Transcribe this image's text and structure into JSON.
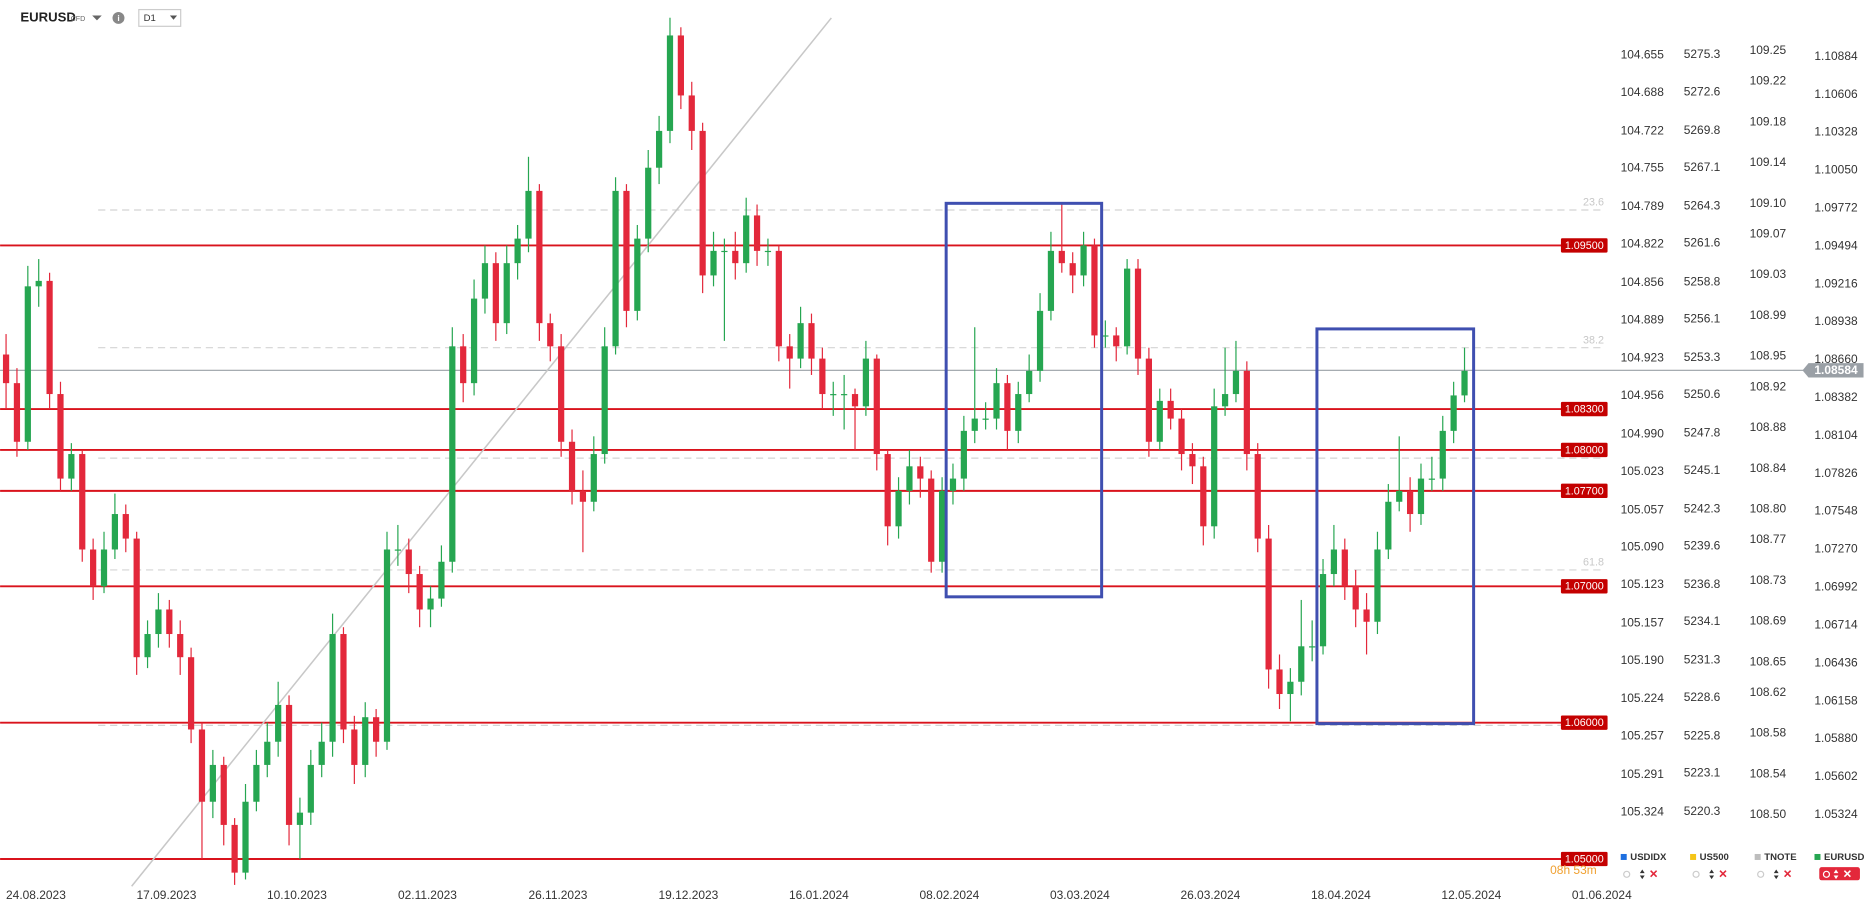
{
  "chart_data": {
    "type": "candlestick",
    "symbol": "EURUSD",
    "instrument_type": "CFD",
    "timeframe": "D1",
    "up_color": "#26a651",
    "down_color": "#e3283b",
    "candles": [
      [
        1.087,
        1.0885,
        1.083,
        1.0849
      ],
      [
        1.0849,
        1.086,
        1.0795,
        1.0806
      ],
      [
        1.0806,
        1.0935,
        1.08,
        1.092
      ],
      [
        1.092,
        1.094,
        1.0905,
        1.0924
      ],
      [
        1.0924,
        1.093,
        1.083,
        1.0841
      ],
      [
        1.0841,
        1.085,
        1.077,
        1.0779
      ],
      [
        1.0779,
        1.0805,
        1.077,
        1.0797
      ],
      [
        1.0797,
        1.08,
        1.0718,
        1.0727
      ],
      [
        1.0727,
        1.0735,
        1.069,
        1.07
      ],
      [
        1.07,
        1.074,
        1.0695,
        1.0727
      ],
      [
        1.0727,
        1.0768,
        1.072,
        1.0753
      ],
      [
        1.0753,
        1.076,
        1.0725,
        1.0735
      ],
      [
        1.0735,
        1.074,
        1.0635,
        1.0648
      ],
      [
        1.0648,
        1.0675,
        1.064,
        1.0665
      ],
      [
        1.0665,
        1.0695,
        1.0655,
        1.0683
      ],
      [
        1.0683,
        1.069,
        1.0655,
        1.0665
      ],
      [
        1.0665,
        1.0675,
        1.0635,
        1.0648
      ],
      [
        1.0648,
        1.0655,
        1.0585,
        1.0595
      ],
      [
        1.0595,
        1.06,
        1.05,
        1.0542
      ],
      [
        1.0542,
        1.058,
        1.053,
        1.0569
      ],
      [
        1.0569,
        1.0575,
        1.051,
        1.0525
      ],
      [
        1.0525,
        1.053,
        1.0481,
        1.049
      ],
      [
        1.049,
        1.0555,
        1.0485,
        1.0542
      ],
      [
        1.0542,
        1.058,
        1.0535,
        1.0569
      ],
      [
        1.0569,
        1.06,
        1.056,
        1.0586
      ],
      [
        1.0586,
        1.063,
        1.0575,
        1.0613
      ],
      [
        1.0613,
        1.062,
        1.051,
        1.0525
      ],
      [
        1.0525,
        1.0545,
        1.05,
        1.0534
      ],
      [
        1.0534,
        1.058,
        1.0525,
        1.0569
      ],
      [
        1.0569,
        1.06,
        1.056,
        1.0586
      ],
      [
        1.0586,
        1.068,
        1.0575,
        1.0665
      ],
      [
        1.0665,
        1.067,
        1.0585,
        1.0595
      ],
      [
        1.0595,
        1.0605,
        1.0555,
        1.0569
      ],
      [
        1.0569,
        1.0615,
        1.056,
        1.0604
      ],
      [
        1.0604,
        1.061,
        1.0575,
        1.0586
      ],
      [
        1.0586,
        1.074,
        1.058,
        1.0727
      ],
      [
        1.0727,
        1.0745,
        1.0715,
        1.0727
      ],
      [
        1.0727,
        1.0735,
        1.0695,
        1.0709
      ],
      [
        1.0709,
        1.0715,
        1.067,
        1.0683
      ],
      [
        1.0683,
        1.07,
        1.067,
        1.0691
      ],
      [
        1.0691,
        1.073,
        1.0685,
        1.0718
      ],
      [
        1.0718,
        1.089,
        1.071,
        1.0876
      ],
      [
        1.0876,
        1.0885,
        1.0835,
        1.0849
      ],
      [
        1.0849,
        1.0925,
        1.084,
        1.0911
      ],
      [
        1.0911,
        1.095,
        1.09,
        1.0937
      ],
      [
        1.0937,
        1.0945,
        1.088,
        1.0893
      ],
      [
        1.0893,
        1.095,
        1.0885,
        1.0937
      ],
      [
        1.0937,
        1.0965,
        1.0925,
        1.0955
      ],
      [
        1.0955,
        1.1015,
        1.0945,
        1.099
      ],
      [
        1.099,
        1.0995,
        1.088,
        1.0893
      ],
      [
        1.0893,
        1.09,
        1.0865,
        1.0876
      ],
      [
        1.0876,
        1.0885,
        1.0795,
        1.0806
      ],
      [
        1.0806,
        1.0815,
        1.076,
        1.077
      ],
      [
        1.077,
        1.0785,
        1.0725,
        1.0762
      ],
      [
        1.0762,
        1.081,
        1.0755,
        1.0797
      ],
      [
        1.0797,
        1.089,
        1.079,
        1.0876
      ],
      [
        1.0876,
        1.1,
        1.087,
        1.099
      ],
      [
        1.099,
        1.0995,
        1.089,
        1.0902
      ],
      [
        1.0902,
        1.0965,
        1.0895,
        1.0955
      ],
      [
        1.0955,
        1.102,
        1.0945,
        1.1007
      ],
      [
        1.1007,
        1.1045,
        1.0995,
        1.1034
      ],
      [
        1.1034,
        1.1117,
        1.1025,
        1.1104
      ],
      [
        1.1104,
        1.111,
        1.105,
        1.106
      ],
      [
        1.106,
        1.107,
        1.102,
        1.1034
      ],
      [
        1.1034,
        1.104,
        1.0915,
        1.0928
      ],
      [
        1.0928,
        1.096,
        1.092,
        1.0946
      ],
      [
        1.0946,
        1.0955,
        1.088,
        1.0946
      ],
      [
        1.0946,
        1.096,
        1.0925,
        1.0937
      ],
      [
        1.0937,
        1.0985,
        1.093,
        1.0972
      ],
      [
        1.0972,
        1.098,
        1.0935,
        1.0946
      ],
      [
        1.0946,
        1.0955,
        1.0935,
        1.0946
      ],
      [
        1.0946,
        1.095,
        1.0865,
        1.0876
      ],
      [
        1.0876,
        1.0885,
        1.0845,
        1.0867
      ],
      [
        1.0867,
        1.0905,
        1.086,
        1.0893
      ],
      [
        1.0893,
        1.09,
        1.0855,
        1.0867
      ],
      [
        1.0867,
        1.0875,
        1.083,
        1.0841
      ],
      [
        1.0841,
        1.085,
        1.0825,
        1.0841
      ],
      [
        1.0841,
        1.0855,
        1.0815,
        1.0841
      ],
      [
        1.0841,
        1.0845,
        1.08,
        1.0832
      ],
      [
        1.0832,
        1.088,
        1.0825,
        1.0867
      ],
      [
        1.0867,
        1.087,
        1.0785,
        1.0797
      ],
      [
        1.0797,
        1.08,
        1.073,
        1.0744
      ],
      [
        1.0744,
        1.078,
        1.0735,
        1.077
      ],
      [
        1.077,
        1.08,
        1.076,
        1.0788
      ],
      [
        1.0788,
        1.0795,
        1.0765,
        1.0779
      ],
      [
        1.0779,
        1.0785,
        1.071,
        1.0718
      ],
      [
        1.0718,
        1.078,
        1.071,
        1.077
      ],
      [
        1.077,
        1.079,
        1.076,
        1.0779
      ],
      [
        1.0779,
        1.0825,
        1.077,
        1.0814
      ],
      [
        1.0814,
        1.089,
        1.0805,
        1.0823
      ],
      [
        1.0823,
        1.0835,
        1.0815,
        1.0823
      ],
      [
        1.0823,
        1.086,
        1.0815,
        1.0849
      ],
      [
        1.0849,
        1.0855,
        1.08,
        1.0814
      ],
      [
        1.0814,
        1.085,
        1.0805,
        1.0841
      ],
      [
        1.0841,
        1.087,
        1.0835,
        1.0858
      ],
      [
        1.0858,
        1.0915,
        1.085,
        1.0902
      ],
      [
        1.0902,
        1.096,
        1.0895,
        1.0946
      ],
      [
        1.0946,
        1.098,
        1.093,
        1.0937
      ],
      [
        1.0937,
        1.0945,
        1.0915,
        1.0928
      ],
      [
        1.0928,
        1.096,
        1.092,
        1.095
      ],
      [
        1.095,
        1.0955,
        1.0875,
        1.0884
      ],
      [
        1.0884,
        1.0895,
        1.0875,
        1.0884
      ],
      [
        1.0884,
        1.089,
        1.0865,
        1.0876
      ],
      [
        1.0876,
        1.094,
        1.087,
        1.0933
      ],
      [
        1.0933,
        1.094,
        1.0855,
        1.0867
      ],
      [
        1.0867,
        1.0875,
        1.0795,
        1.0806
      ],
      [
        1.0806,
        1.0845,
        1.08,
        1.0836
      ],
      [
        1.0836,
        1.0845,
        1.0815,
        1.0823
      ],
      [
        1.0823,
        1.083,
        1.0785,
        1.0797
      ],
      [
        1.0797,
        1.0805,
        1.0775,
        1.0788
      ],
      [
        1.0788,
        1.0795,
        1.073,
        1.0744
      ],
      [
        1.0744,
        1.0845,
        1.0735,
        1.0832
      ],
      [
        1.0832,
        1.0875,
        1.0825,
        1.0841
      ],
      [
        1.0841,
        1.088,
        1.0835,
        1.0858
      ],
      [
        1.0858,
        1.0865,
        1.0785,
        1.0797
      ],
      [
        1.0797,
        1.0805,
        1.0725,
        1.0735
      ],
      [
        1.0735,
        1.0745,
        1.0625,
        1.0639
      ],
      [
        1.0639,
        1.065,
        1.061,
        1.0621
      ],
      [
        1.0621,
        1.064,
        1.0601,
        1.063
      ],
      [
        1.063,
        1.069,
        1.062,
        1.0656
      ],
      [
        1.0656,
        1.0675,
        1.0645,
        1.0656
      ],
      [
        1.0656,
        1.072,
        1.065,
        1.0709
      ],
      [
        1.0709,
        1.0745,
        1.07,
        1.0727
      ],
      [
        1.0727,
        1.0735,
        1.069,
        1.07
      ],
      [
        1.07,
        1.0712,
        1.067,
        1.0683
      ],
      [
        1.0683,
        1.0695,
        1.065,
        1.0674
      ],
      [
        1.0674,
        1.074,
        1.0665,
        1.0727
      ],
      [
        1.0727,
        1.0775,
        1.072,
        1.0762
      ],
      [
        1.0762,
        1.081,
        1.0755,
        1.077
      ],
      [
        1.077,
        1.078,
        1.074,
        1.0753
      ],
      [
        1.0753,
        1.079,
        1.0745,
        1.0779
      ],
      [
        1.0779,
        1.0795,
        1.077,
        1.0779
      ],
      [
        1.0779,
        1.0825,
        1.077,
        1.0814
      ],
      [
        1.0814,
        1.085,
        1.0805,
        1.084
      ],
      [
        1.084,
        1.0875,
        1.0835,
        1.0858
      ]
    ],
    "x_labels": [
      "24.08.2023",
      "17.09.2023",
      "10.10.2023",
      "02.11.2023",
      "26.11.2023",
      "19.12.2023",
      "16.01.2024",
      "08.02.2024",
      "03.03.2024",
      "26.03.2024",
      "18.04.2024",
      "12.05.2024",
      "01.06.2024"
    ],
    "ylim": [
      1.048,
      1.113
    ],
    "yticks": [
      1.10884,
      1.10606,
      1.10328,
      {
        "value": 1.1005,
        "label": "1.10050"
      },
      1.09772,
      1.09494,
      1.09216,
      1.08938,
      {
        "value": 1.0866,
        "label": "1.08660"
      },
      1.08382,
      1.08104,
      1.07826,
      1.07548,
      {
        "value": 1.0727,
        "label": "1.07270"
      },
      1.06992,
      1.06714,
      1.06436,
      1.06158,
      {
        "value": 1.0588,
        "label": "1.05880"
      },
      1.05602,
      1.05324
    ],
    "last_price": 1.08584,
    "last_price_color": "#9aa0a6",
    "level_color": "#d9131c",
    "levels": [
      {
        "value": 1.095,
        "label": "1.09500"
      },
      {
        "value": 1.083,
        "label": "1.08300"
      },
      {
        "value": 1.08,
        "label": "1.08000"
      },
      {
        "value": 1.077,
        "label": "1.07700"
      },
      {
        "value": 1.07,
        "label": "1.07000"
      },
      {
        "value": 1.06,
        "label": "1.06000"
      },
      {
        "value": 1.05,
        "label": "1.05000"
      }
    ],
    "fib_levels": [
      {
        "value": 1.0976,
        "label": "23.6"
      },
      {
        "value": 1.0875,
        "label": "38.2"
      },
      {
        "value": 1.0712,
        "label": "61.8"
      }
    ],
    "fib_unlabeled_levels": [
      1.0794,
      1.0598
    ],
    "countdown": "08h 53m",
    "overlays": [
      {
        "name": "USDIDX",
        "color": "#1e6fe0",
        "ylim": [
          105.3895,
          104.606
        ],
        "yticks": [
          104.655,
          104.688,
          104.722,
          104.755,
          104.789,
          104.822,
          104.856,
          104.889,
          104.923,
          104.956,
          {
            "value": 104.99,
            "label": "104.990"
          },
          105.023,
          105.057,
          {
            "value": 105.09,
            "label": "105.090"
          },
          105.123,
          105.157,
          {
            "value": 105.19,
            "label": "105.190"
          },
          105.224,
          105.257,
          105.291,
          105.324
        ]
      },
      {
        "name": "US500",
        "color": "#f5c518",
        "ylim": [
          5214.9,
          5279.3
        ],
        "yticks": [
          5275.3,
          5272.6,
          5269.8,
          5267.1,
          5264.3,
          5261.6,
          5258.8,
          5256.1,
          5253.3,
          5250.6,
          5247.8,
          5245.1,
          5242.3,
          5239.6,
          5236.8,
          5234.1,
          5231.3,
          5228.6,
          5225.8,
          5223.1,
          5220.3
        ]
      },
      {
        "name": "TNOTE",
        "color": "#bdbdbd",
        "ylim": [
          108.43,
          109.3
        ],
        "yticks": [
          109.25,
          109.22,
          109.18,
          109.14,
          {
            "value": 109.1,
            "label": "109.10"
          },
          109.07,
          109.03,
          108.99,
          108.95,
          108.92,
          108.88,
          108.84,
          {
            "value": 108.8,
            "label": "108.80"
          },
          108.77,
          108.73,
          108.69,
          108.65,
          108.62,
          108.58,
          108.54,
          {
            "value": 108.5,
            "label": "108.50"
          }
        ]
      },
      {
        "name": "EURUSD",
        "color": "#26a651"
      }
    ]
  }
}
